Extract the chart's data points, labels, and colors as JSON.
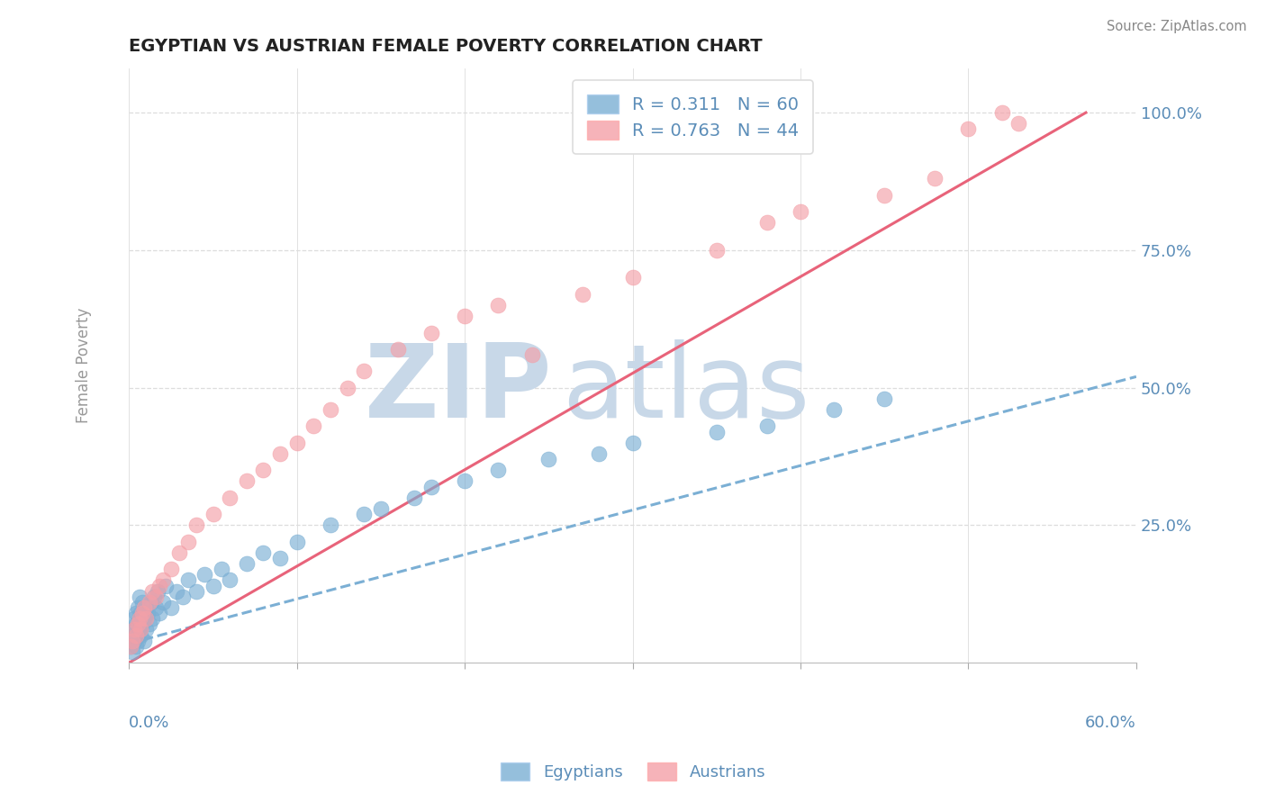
{
  "title": "EGYPTIAN VS AUSTRIAN FEMALE POVERTY CORRELATION CHART",
  "source": "Source: ZipAtlas.com",
  "xmin": 0.0,
  "xmax": 60.0,
  "ymin": 0.0,
  "ymax": 108.0,
  "yticks": [
    0,
    25,
    50,
    75,
    100
  ],
  "ytick_labels": [
    "",
    "25.0%",
    "50.0%",
    "75.0%",
    "100.0%"
  ],
  "xtick_labels_show": [
    "0.0%",
    "60.0%"
  ],
  "color_egyptian": "#7BAFD4",
  "color_austrian": "#F4A0A8",
  "color_trend_egyptian": "#7BAFD4",
  "color_trend_austrian": "#E8637A",
  "color_axis_labels": "#5B8DB8",
  "color_title": "#222222",
  "color_grid": "#DDDDDD",
  "color_watermark": "#C8D8E8",
  "watermark_zip": "ZIP",
  "watermark_atlas": "atlas",
  "legend_label_r1": "R = 0.311",
  "legend_label_n1": "N = 60",
  "legend_label_r2": "R = 0.763",
  "legend_label_n2": "N = 44",
  "legend_label_egyptians": "Egyptians",
  "legend_label_austrians": "Austrians",
  "eg_trend_x0": 0.0,
  "eg_trend_y0": 3.5,
  "eg_trend_x1": 60.0,
  "eg_trend_y1": 52.0,
  "au_trend_x0": 0.0,
  "au_trend_y0": 0.0,
  "au_trend_x1": 57.0,
  "au_trend_y1": 100.0,
  "egyptians_x": [
    0.1,
    0.2,
    0.2,
    0.3,
    0.3,
    0.3,
    0.4,
    0.4,
    0.4,
    0.5,
    0.5,
    0.5,
    0.6,
    0.6,
    0.6,
    0.7,
    0.7,
    0.8,
    0.8,
    0.9,
    0.9,
    1.0,
    1.0,
    1.1,
    1.2,
    1.3,
    1.4,
    1.5,
    1.6,
    1.7,
    1.8,
    2.0,
    2.2,
    2.5,
    2.8,
    3.2,
    3.5,
    4.0,
    4.5,
    5.0,
    5.5,
    6.0,
    7.0,
    8.0,
    9.0,
    10.0,
    12.0,
    14.0,
    15.0,
    17.0,
    18.0,
    20.0,
    22.0,
    25.0,
    28.0,
    30.0,
    35.0,
    38.0,
    42.0,
    45.0
  ],
  "egyptians_y": [
    3,
    5,
    2,
    8,
    4,
    6,
    7,
    3,
    9,
    5,
    10,
    4,
    8,
    6,
    12,
    5,
    9,
    7,
    11,
    4,
    8,
    6,
    10,
    9,
    7,
    11,
    8,
    12,
    10,
    13,
    9,
    11,
    14,
    10,
    13,
    12,
    15,
    13,
    16,
    14,
    17,
    15,
    18,
    20,
    19,
    22,
    25,
    27,
    28,
    30,
    32,
    33,
    35,
    37,
    38,
    40,
    42,
    43,
    46,
    48
  ],
  "austrians_x": [
    0.1,
    0.2,
    0.3,
    0.4,
    0.5,
    0.6,
    0.7,
    0.8,
    0.9,
    1.0,
    1.2,
    1.4,
    1.6,
    1.8,
    2.0,
    2.5,
    3.0,
    3.5,
    4.0,
    5.0,
    6.0,
    7.0,
    8.0,
    9.0,
    10.0,
    11.0,
    12.0,
    13.0,
    14.0,
    16.0,
    18.0,
    20.0,
    22.0,
    24.0,
    27.0,
    30.0,
    35.0,
    38.0,
    40.0,
    45.0,
    48.0,
    50.0,
    52.0,
    53.0
  ],
  "austrians_y": [
    3,
    4,
    6,
    5,
    7,
    8,
    6,
    9,
    10,
    8,
    11,
    13,
    12,
    14,
    15,
    17,
    20,
    22,
    25,
    27,
    30,
    33,
    35,
    38,
    40,
    43,
    46,
    50,
    53,
    57,
    60,
    63,
    65,
    56,
    67,
    70,
    75,
    80,
    82,
    85,
    88,
    97,
    100,
    98
  ]
}
